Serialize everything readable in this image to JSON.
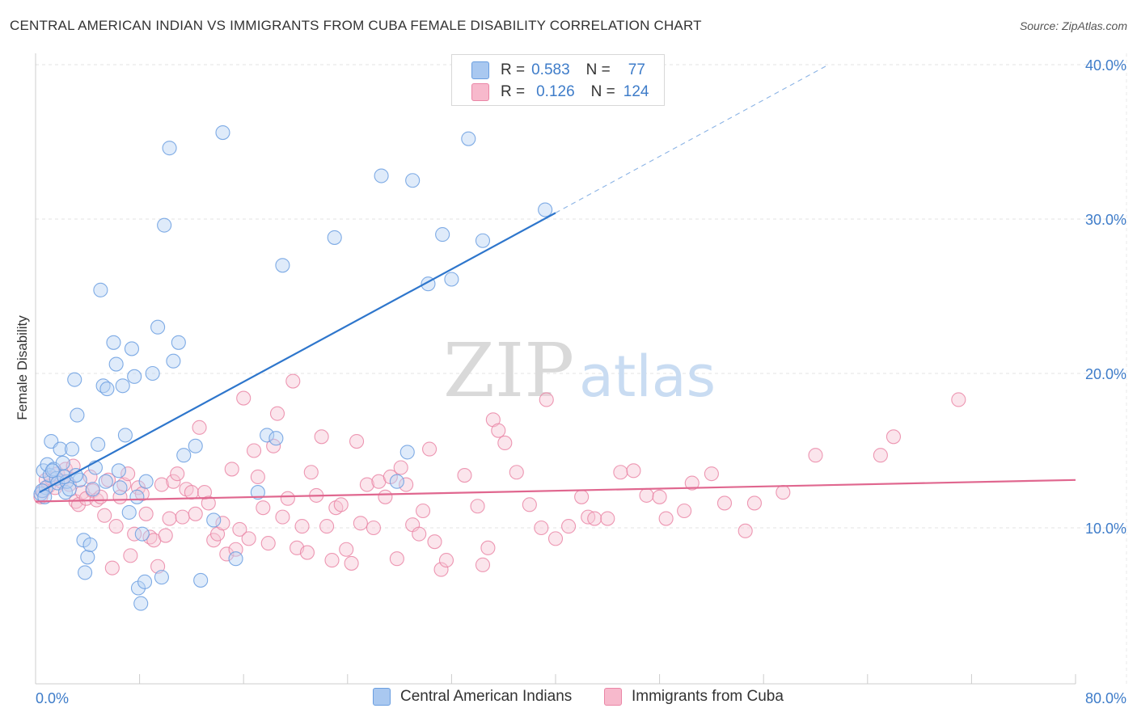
{
  "title": "CENTRAL AMERICAN INDIAN VS IMMIGRANTS FROM CUBA FEMALE DISABILITY CORRELATION CHART",
  "source": "Source: ZipAtlas.com",
  "watermark": {
    "zip": "ZIP",
    "atlas": "atlas"
  },
  "legend_top": {
    "rows": [
      {
        "r_label": "R =",
        "r_value": "0.583",
        "n_label": "N =",
        "n_value": "77",
        "color": "#a9c8f0",
        "border": "#6a9ee0"
      },
      {
        "r_label": "R =",
        "r_value": "0.126",
        "n_label": "N =",
        "n_value": "124",
        "color": "#f7b9cc",
        "border": "#ea86a6"
      }
    ]
  },
  "legend_bottom": [
    {
      "label": "Central American Indians",
      "color": "#a9c8f0",
      "border": "#6a9ee0"
    },
    {
      "label": "Immigrants from Cuba",
      "color": "#f7b9cc",
      "border": "#ea86a6"
    }
  ],
  "chart_data": {
    "type": "scatter",
    "title": "CENTRAL AMERICAN INDIAN VS IMMIGRANTS FROM CUBA FEMALE DISABILITY CORRELATION CHART",
    "xlabel": "",
    "ylabel": "Female Disability",
    "xlim": [
      0,
      80
    ],
    "ylim": [
      0,
      42
    ],
    "x_tick_labels": [
      "0.0%",
      "80.0%"
    ],
    "y_ticks": [
      10,
      20,
      30,
      40
    ],
    "y_tick_labels": [
      "10.0%",
      "20.0%",
      "30.0%",
      "40.0%"
    ],
    "grid": true,
    "legend_placement": "top-center",
    "colors": {
      "blue": "#6a9ee0",
      "pink": "#ea86a6",
      "blue_line": "#2e76cc",
      "pink_line": "#e0678f",
      "axis_label": "#3e7cc9"
    },
    "series": [
      {
        "name": "Central American Indians",
        "color": "#6a9ee0",
        "trend": {
          "x": [
            0.3,
            40.0
          ],
          "y": [
            12.3,
            30.4
          ],
          "dashed_to": [
            61.0,
            40.0
          ]
        },
        "points": [
          [
            0.4,
            12.2
          ],
          [
            0.6,
            13.7
          ],
          [
            0.8,
            12.6
          ],
          [
            0.9,
            14.1
          ],
          [
            1.1,
            13.4
          ],
          [
            1.2,
            15.6
          ],
          [
            1.4,
            13.8
          ],
          [
            1.6,
            13.2
          ],
          [
            1.7,
            12.9
          ],
          [
            1.9,
            15.1
          ],
          [
            2.1,
            14.2
          ],
          [
            2.3,
            12.3
          ],
          [
            2.4,
            13.0
          ],
          [
            2.6,
            12.5
          ],
          [
            2.8,
            15.1
          ],
          [
            3.0,
            19.6
          ],
          [
            3.2,
            17.3
          ],
          [
            3.4,
            13.1
          ],
          [
            3.7,
            9.2
          ],
          [
            3.8,
            7.1
          ],
          [
            4.0,
            8.1
          ],
          [
            4.2,
            8.9
          ],
          [
            4.4,
            12.5
          ],
          [
            4.6,
            13.9
          ],
          [
            4.8,
            15.4
          ],
          [
            5.0,
            25.4
          ],
          [
            5.2,
            19.2
          ],
          [
            5.4,
            13.0
          ],
          [
            5.5,
            19.0
          ],
          [
            6.0,
            22.0
          ],
          [
            6.2,
            20.6
          ],
          [
            6.4,
            13.7
          ],
          [
            6.5,
            12.6
          ],
          [
            6.7,
            19.2
          ],
          [
            6.9,
            16.0
          ],
          [
            7.2,
            11.0
          ],
          [
            7.4,
            21.6
          ],
          [
            7.6,
            19.8
          ],
          [
            7.8,
            12.0
          ],
          [
            7.9,
            6.1
          ],
          [
            8.1,
            5.1
          ],
          [
            8.2,
            9.6
          ],
          [
            8.4,
            6.5
          ],
          [
            8.5,
            13.0
          ],
          [
            9.0,
            20.0
          ],
          [
            9.4,
            23.0
          ],
          [
            9.7,
            6.8
          ],
          [
            9.9,
            29.6
          ],
          [
            10.3,
            34.6
          ],
          [
            10.6,
            20.8
          ],
          [
            11.0,
            22.0
          ],
          [
            11.4,
            14.7
          ],
          [
            12.3,
            15.3
          ],
          [
            12.7,
            6.6
          ],
          [
            13.7,
            10.5
          ],
          [
            14.4,
            35.6
          ],
          [
            15.4,
            8.0
          ],
          [
            17.1,
            12.3
          ],
          [
            17.8,
            16.0
          ],
          [
            18.5,
            15.8
          ],
          [
            19.0,
            27.0
          ],
          [
            23.0,
            28.8
          ],
          [
            26.6,
            32.8
          ],
          [
            27.8,
            13.0
          ],
          [
            28.6,
            14.9
          ],
          [
            29.0,
            32.5
          ],
          [
            30.2,
            25.8
          ],
          [
            31.3,
            29.0
          ],
          [
            32.0,
            26.1
          ],
          [
            33.3,
            35.2
          ],
          [
            34.4,
            28.6
          ],
          [
            39.2,
            30.6
          ],
          [
            0.5,
            12.4
          ],
          [
            1.3,
            13.7
          ],
          [
            2.2,
            13.3
          ],
          [
            3.1,
            13.4
          ],
          [
            0.7,
            12.0
          ]
        ]
      },
      {
        "name": "Immigrants from Cuba",
        "color": "#ea86a6",
        "trend": {
          "x": [
            0.0,
            80.0
          ],
          "y": [
            11.7,
            13.1
          ]
        },
        "points": [
          [
            0.4,
            12.0
          ],
          [
            0.6,
            12.4
          ],
          [
            0.8,
            13.1
          ],
          [
            1.0,
            12.7
          ],
          [
            1.2,
            13.2
          ],
          [
            1.5,
            12.6
          ],
          [
            1.7,
            13.5
          ],
          [
            2.0,
            13.0
          ],
          [
            2.3,
            13.8
          ],
          [
            2.6,
            12.8
          ],
          [
            2.9,
            14.0
          ],
          [
            3.1,
            11.7
          ],
          [
            3.3,
            11.5
          ],
          [
            3.6,
            12.3
          ],
          [
            3.9,
            11.9
          ],
          [
            4.2,
            13.3
          ],
          [
            4.4,
            12.4
          ],
          [
            4.7,
            11.8
          ],
          [
            5.0,
            12.0
          ],
          [
            5.3,
            10.8
          ],
          [
            5.6,
            13.1
          ],
          [
            5.9,
            7.4
          ],
          [
            6.2,
            10.1
          ],
          [
            6.5,
            12.0
          ],
          [
            6.8,
            12.8
          ],
          [
            7.1,
            13.5
          ],
          [
            7.3,
            8.2
          ],
          [
            7.6,
            9.6
          ],
          [
            7.9,
            12.6
          ],
          [
            8.2,
            12.2
          ],
          [
            8.5,
            10.9
          ],
          [
            8.8,
            9.4
          ],
          [
            9.1,
            9.2
          ],
          [
            9.4,
            7.5
          ],
          [
            9.7,
            12.8
          ],
          [
            10.0,
            9.5
          ],
          [
            10.3,
            10.6
          ],
          [
            10.6,
            13.0
          ],
          [
            10.9,
            13.5
          ],
          [
            11.3,
            10.7
          ],
          [
            11.6,
            12.5
          ],
          [
            12.0,
            12.3
          ],
          [
            12.3,
            10.9
          ],
          [
            12.6,
            16.5
          ],
          [
            13.0,
            12.3
          ],
          [
            13.3,
            11.6
          ],
          [
            13.7,
            9.2
          ],
          [
            14.0,
            9.6
          ],
          [
            14.4,
            10.3
          ],
          [
            14.7,
            8.3
          ],
          [
            15.1,
            13.8
          ],
          [
            15.4,
            8.6
          ],
          [
            15.7,
            9.9
          ],
          [
            16.0,
            18.4
          ],
          [
            16.4,
            9.3
          ],
          [
            16.8,
            15.0
          ],
          [
            17.1,
            13.3
          ],
          [
            17.5,
            11.3
          ],
          [
            17.9,
            9.0
          ],
          [
            18.3,
            15.3
          ],
          [
            18.6,
            17.4
          ],
          [
            19.0,
            10.7
          ],
          [
            19.4,
            11.9
          ],
          [
            19.8,
            19.5
          ],
          [
            20.1,
            8.7
          ],
          [
            20.5,
            10.1
          ],
          [
            20.9,
            8.4
          ],
          [
            21.2,
            13.6
          ],
          [
            21.6,
            12.1
          ],
          [
            22.0,
            15.9
          ],
          [
            22.4,
            10.1
          ],
          [
            22.8,
            7.9
          ],
          [
            23.1,
            11.3
          ],
          [
            23.5,
            11.5
          ],
          [
            23.9,
            8.6
          ],
          [
            24.3,
            7.7
          ],
          [
            24.7,
            15.6
          ],
          [
            25.0,
            10.3
          ],
          [
            25.5,
            12.8
          ],
          [
            26.0,
            10.0
          ],
          [
            26.4,
            13.0
          ],
          [
            26.9,
            12.0
          ],
          [
            27.3,
            13.3
          ],
          [
            27.8,
            8.0
          ],
          [
            28.1,
            13.9
          ],
          [
            28.5,
            12.8
          ],
          [
            29.0,
            10.2
          ],
          [
            29.5,
            9.6
          ],
          [
            29.8,
            11.1
          ],
          [
            30.3,
            15.1
          ],
          [
            30.7,
            9.1
          ],
          [
            31.2,
            7.3
          ],
          [
            31.6,
            7.9
          ],
          [
            33.0,
            13.4
          ],
          [
            34.0,
            11.4
          ],
          [
            34.4,
            7.6
          ],
          [
            34.8,
            8.7
          ],
          [
            35.2,
            17.0
          ],
          [
            35.6,
            16.3
          ],
          [
            36.1,
            15.5
          ],
          [
            37.0,
            13.6
          ],
          [
            38.0,
            11.5
          ],
          [
            38.9,
            10.0
          ],
          [
            39.3,
            18.3
          ],
          [
            40.0,
            9.3
          ],
          [
            41.0,
            10.1
          ],
          [
            42.0,
            12.0
          ],
          [
            42.5,
            10.7
          ],
          [
            43.0,
            10.6
          ],
          [
            44.0,
            10.6
          ],
          [
            45.0,
            13.6
          ],
          [
            46.0,
            13.7
          ],
          [
            47.0,
            12.1
          ],
          [
            48.0,
            12.0
          ],
          [
            48.5,
            10.6
          ],
          [
            49.9,
            11.1
          ],
          [
            50.5,
            12.9
          ],
          [
            52.0,
            13.5
          ],
          [
            53.0,
            11.6
          ],
          [
            54.6,
            9.8
          ],
          [
            55.3,
            11.6
          ],
          [
            57.5,
            12.3
          ],
          [
            60.0,
            14.7
          ],
          [
            65.0,
            14.7
          ],
          [
            66.0,
            15.9
          ],
          [
            71.0,
            18.3
          ]
        ]
      }
    ]
  }
}
